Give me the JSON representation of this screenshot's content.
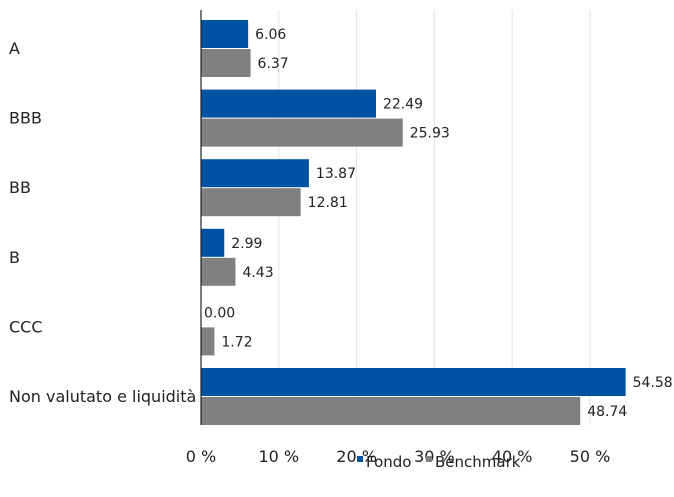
{
  "chart_data": {
    "type": "bar",
    "orientation": "horizontal",
    "categories": [
      "A",
      "BBB",
      "BB",
      "B",
      "CCC",
      "Non valutato e liquidità"
    ],
    "series": [
      {
        "name": "Fondo",
        "color": "#0052a3",
        "values": [
          6.06,
          22.49,
          13.87,
          2.99,
          0.0,
          54.58
        ]
      },
      {
        "name": "Benchmark",
        "color": "#808080",
        "values": [
          6.37,
          25.93,
          12.81,
          4.43,
          1.72,
          48.74
        ]
      }
    ],
    "value_labels": [
      [
        "6.06",
        "22.49",
        "13.87",
        "2.99",
        "0.00",
        "54.58"
      ],
      [
        "6.37",
        "25.93",
        "12.81",
        "4.43",
        "1.72",
        "48.74"
      ]
    ],
    "x_ticks": [
      "0 %",
      "10 %",
      "20 %",
      "30 %",
      "40 %",
      "50 %"
    ],
    "x_tick_values": [
      0,
      10,
      20,
      30,
      40,
      50
    ],
    "xlim": [
      0,
      55
    ],
    "grid": "vertical",
    "legend_position": "bottom-right",
    "gridline_color": "#e3e3e3",
    "axis_color": "#222222",
    "text_color": "#222222"
  }
}
